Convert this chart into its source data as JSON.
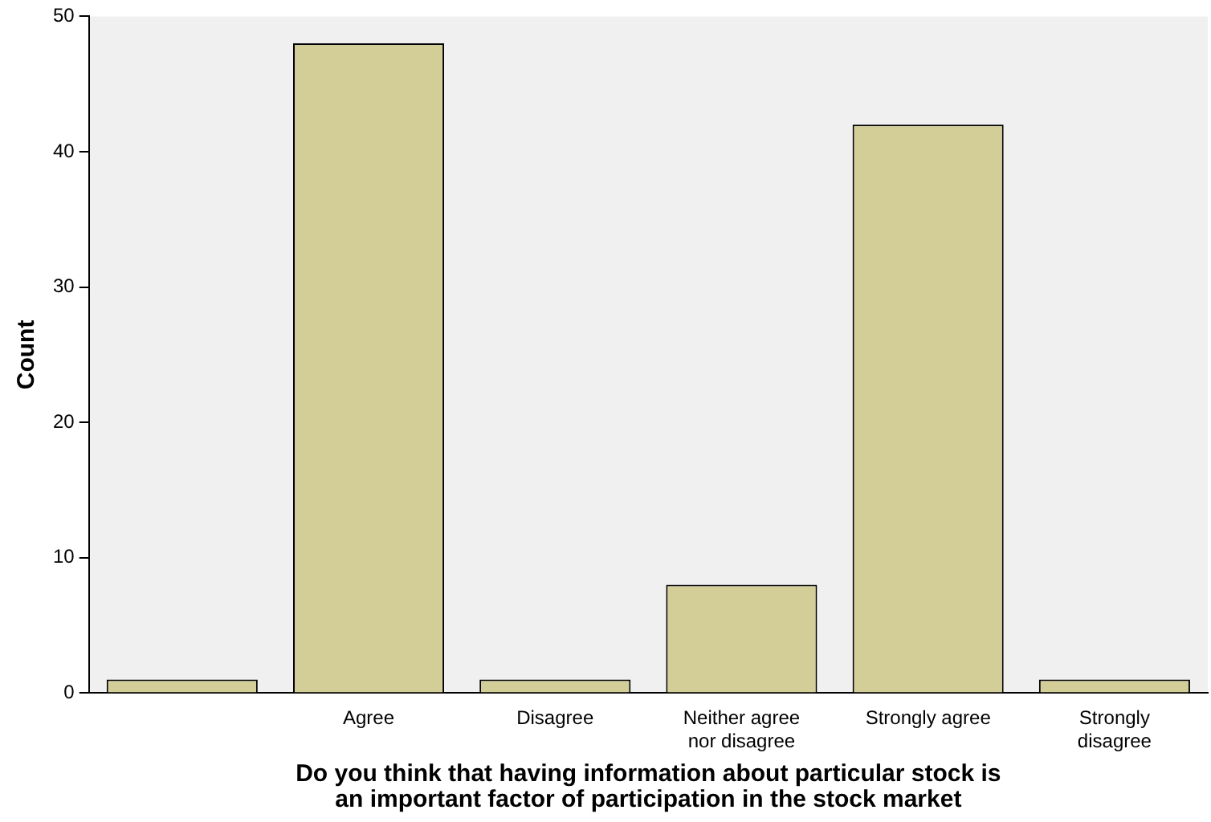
{
  "chart_data": {
    "type": "bar",
    "xlabel": "Do you think that having information about particular stock is an important factor of participation in the stock market",
    "ylabel": "Count",
    "categories": [
      null,
      "Agree",
      "Disagree",
      "Neither agree nor disagree",
      "Strongly agree",
      "Strongly disagree"
    ],
    "values": [
      1,
      48,
      1,
      8,
      42,
      1
    ],
    "color": "#d3ce97",
    "ylim": [
      0,
      50
    ],
    "yticks": [
      0,
      10,
      20,
      30,
      40,
      50
    ],
    "grid": false,
    "legend": false
  }
}
